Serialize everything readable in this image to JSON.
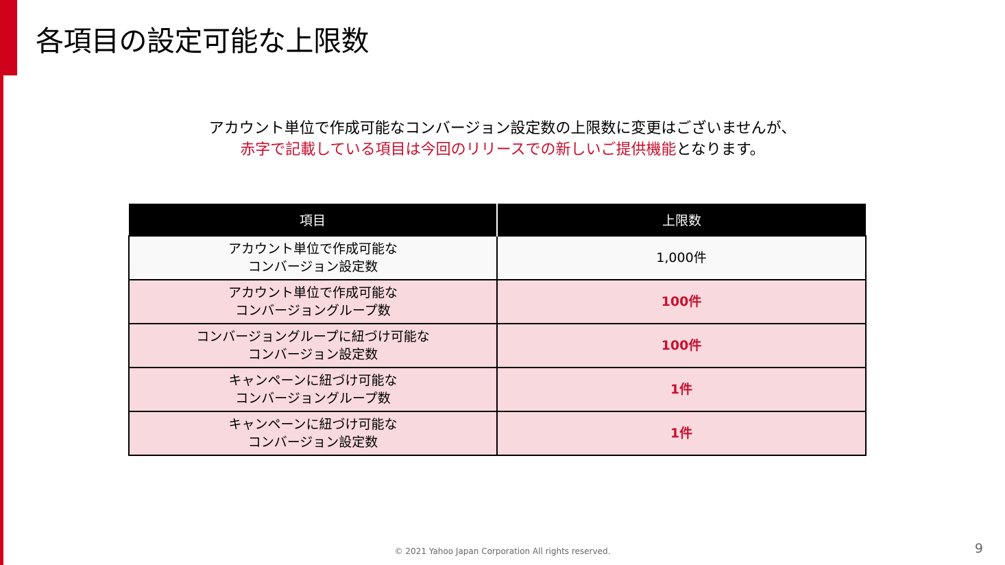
{
  "slide": {
    "title": "各項目の設定可能な上限数",
    "intro": {
      "line1": "アカウント単位で作成可能なコンバージョン設定数の上限数に変更はございませんが、",
      "line2_red": "赤字で記載している項目は今回のリリースでの新しいご提供機能",
      "line2_rest": "となります。"
    },
    "table": {
      "headers": [
        "項目",
        "上限数"
      ],
      "rows": [
        {
          "item_line1": "アカウント単位で作成可能な",
          "item_line2": "コンバージョン設定数",
          "limit": "1,000件",
          "is_new": false
        },
        {
          "item_line1": "アカウント単位で作成可能な",
          "item_line2": "コンバージョングループ数",
          "limit": "100件",
          "is_new": true
        },
        {
          "item_line1": "コンバージョングループに紐づけ可能な",
          "item_line2": "コンバージョン設定数",
          "limit": "100件",
          "is_new": true
        },
        {
          "item_line1": "キャンペーンに紐づけ可能な",
          "item_line2": "コンバージョングループ数",
          "limit": "1件",
          "is_new": true
        },
        {
          "item_line1": "キャンペーンに紐づけ可能な",
          "item_line2": "コンバージョン設定数",
          "limit": "1件",
          "is_new": true
        }
      ]
    },
    "footer": {
      "copyright": "© 2021 Yahoo Japan Corporation All rights reserved.",
      "page_number": "9"
    },
    "colors": {
      "accent": "#d0021b",
      "highlight_text": "#c8102e",
      "new_row_bg": "#f8d9de"
    }
  }
}
